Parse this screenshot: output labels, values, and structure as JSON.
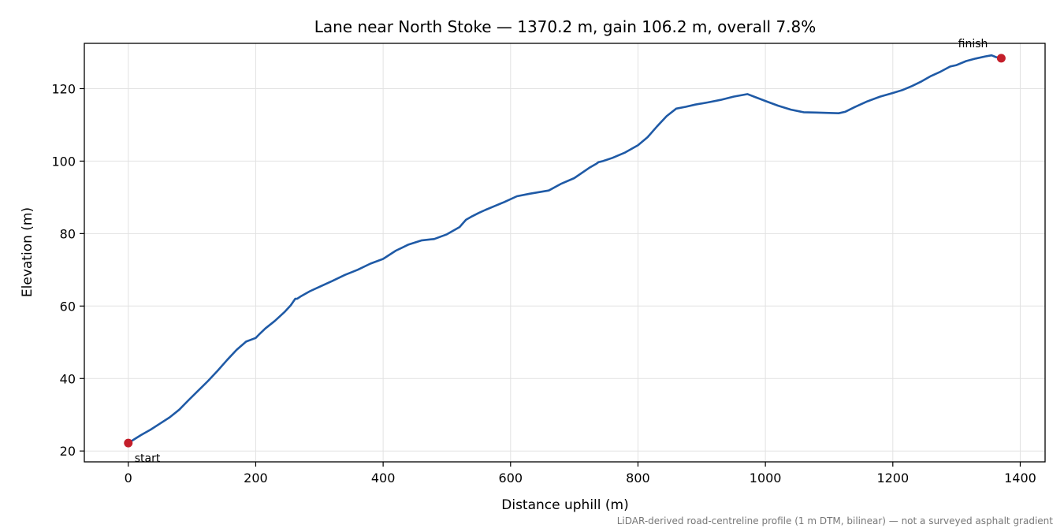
{
  "chart_data": {
    "type": "line",
    "title": "Lane near North Stoke — 1370.2 m, gain 106.2 m, overall 7.8%",
    "xlabel": "Distance uphill (m)",
    "ylabel": "Elevation (m)",
    "footnote": "LiDAR-derived road-centreline profile (1 m DTM, bilinear) — not a surveyed asphalt gradient",
    "xlim": [
      -69,
      1439
    ],
    "ylim": [
      17,
      132.5
    ],
    "xticks": [
      0,
      200,
      400,
      600,
      800,
      1000,
      1200,
      1400
    ],
    "yticks": [
      20,
      40,
      60,
      80,
      100,
      120
    ],
    "xtick_labels": [
      "0",
      "200",
      "400",
      "600",
      "800",
      "1000",
      "1200",
      "1400"
    ],
    "ytick_labels": [
      "20",
      "40",
      "60",
      "80",
      "100",
      "120"
    ],
    "grid": true,
    "line_color": "#1f5aa6",
    "marker_color": "#c41e2a",
    "series": [
      {
        "x": [
          0,
          10,
          20,
          35,
          50,
          65,
          80,
          95,
          110,
          125,
          140,
          155,
          170,
          185,
          200,
          205,
          215,
          230,
          245,
          255,
          262,
          265,
          270,
          285,
          300,
          320,
          340,
          360,
          380,
          400,
          420,
          440,
          460,
          475,
          480,
          500,
          520,
          530,
          540,
          550,
          560,
          575,
          590,
          610,
          630,
          660,
          680,
          700,
          725,
          735,
          738,
          745,
          760,
          780,
          800,
          815,
          830,
          845,
          860,
          875,
          890,
          910,
          930,
          950,
          972,
          985,
          1000,
          1020,
          1040,
          1060,
          1080,
          1100,
          1115,
          1125,
          1140,
          1160,
          1180,
          1200,
          1215,
          1230,
          1245,
          1260,
          1275,
          1290,
          1300,
          1315,
          1330,
          1345,
          1355,
          1362,
          1370.2
        ],
        "y": [
          22.2,
          23.3,
          24.4,
          25.9,
          27.6,
          29.3,
          31.4,
          34.1,
          36.7,
          39.3,
          42.1,
          45.1,
          47.9,
          50.2,
          51.2,
          52.1,
          53.8,
          55.9,
          58.3,
          60.2,
          62.0,
          62.0,
          62.6,
          64.1,
          65.3,
          66.9,
          68.6,
          70.0,
          71.7,
          73.0,
          75.3,
          77.0,
          78.1,
          78.4,
          78.5,
          79.8,
          81.8,
          83.8,
          84.8,
          85.7,
          86.5,
          87.6,
          88.7,
          90.3,
          91.0,
          91.9,
          93.8,
          95.3,
          98.3,
          99.3,
          99.7,
          100.0,
          100.9,
          102.4,
          104.4,
          106.6,
          109.6,
          112.4,
          114.5,
          115.0,
          115.6,
          116.2,
          116.9,
          117.8,
          118.5,
          117.6,
          116.6,
          115.3,
          114.2,
          113.5,
          113.4,
          113.3,
          113.2,
          113.6,
          114.9,
          116.5,
          117.8,
          118.8,
          119.6,
          120.7,
          122.0,
          123.5,
          124.7,
          126.1,
          126.5,
          127.6,
          128.3,
          128.9,
          129.2,
          128.7,
          128.4
        ]
      }
    ],
    "annotations": [
      {
        "label": "start",
        "x": 0,
        "y": 22.2
      },
      {
        "label": "finish",
        "x": 1370.2,
        "y": 128.4
      }
    ]
  }
}
